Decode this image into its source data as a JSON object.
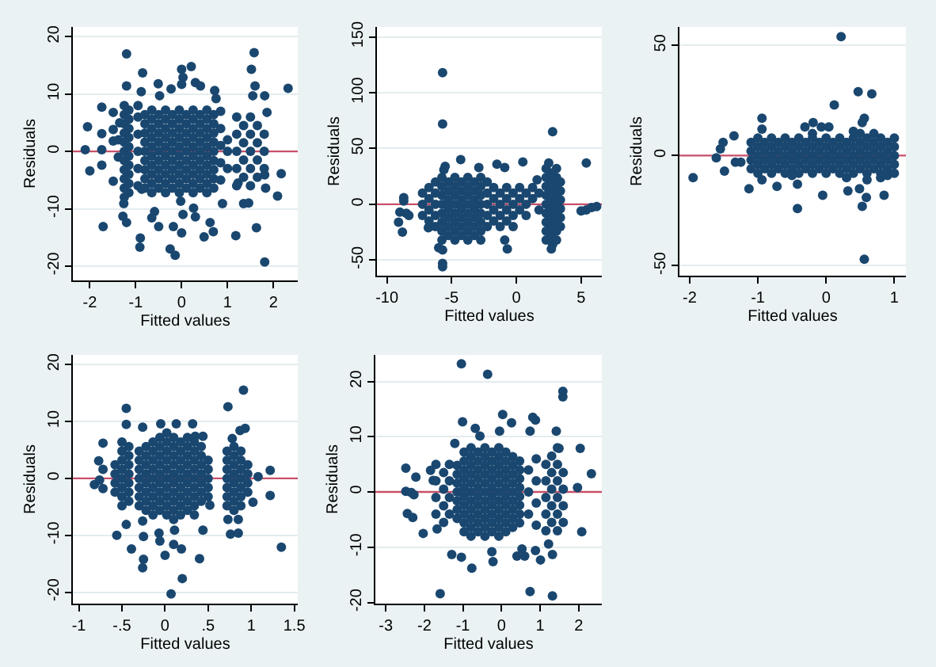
{
  "chart_data": [
    {
      "type": "scatter",
      "xlabel": "Fitted values",
      "ylabel": "Residuals",
      "xlim": [
        -2.37,
        2.53
      ],
      "ylim": [
        -22.5,
        21.7
      ],
      "xticks": [
        -2,
        -1,
        0,
        1,
        2
      ],
      "yticks": [
        -20,
        -10,
        0,
        10,
        20
      ],
      "grid": "y",
      "marker": "circle",
      "color": "#1a476f",
      "ref_lines": [
        {
          "axis": "y",
          "value": 0,
          "color": "#c8506a"
        }
      ],
      "x": [
        -2.05,
        -2.1,
        -2.0,
        -1.74,
        -1.74,
        -1.74,
        -1.74,
        -1.71,
        -1.49,
        -1.49,
        -1.49,
        -1.49,
        -1.2,
        -1.2,
        -1.26,
        -1.28,
        -1.2,
        -0.9,
        -0.91,
        -0.85,
        -0.88,
        -0.87,
        -0.59,
        -0.65,
        -0.51,
        -0.48,
        -0.5,
        -0.25,
        -0.14,
        -0.23,
        -0.18,
        0,
        0.03,
        0,
        -0.02,
        0.03,
        0,
        0.21,
        0.3,
        0.41,
        0.26,
        0.3,
        0.49,
        0.62,
        0.69,
        0.72,
        0.75,
        0.89,
        1.18,
        1.23,
        1.35,
        1.46,
        1.52,
        1.58,
        1.6,
        1.55,
        1.63,
        1.81,
        1.81,
        1.83,
        1.81,
        1.86,
        2.09,
        2.17,
        2.32,
        -1.38,
        -1.38,
        -1.35,
        -1.25,
        -1.25,
        -1.25,
        -1.25,
        -1.25,
        -1.25,
        -1.25,
        -1.25,
        -1.25,
        -1.25,
        -1.25,
        -1.15,
        -1.15,
        -1.15,
        -1.15,
        -1.15,
        -1.15,
        -1.15,
        -1.15,
        -1.15,
        -1.15,
        -0.95,
        -0.95,
        -0.95,
        -0.95,
        -0.95,
        -0.95,
        -0.8,
        -0.8,
        -0.8,
        -0.8,
        -0.8,
        -0.8,
        -0.8,
        -0.8,
        -0.8,
        -0.65,
        -0.65,
        -0.65,
        -0.65,
        -0.65,
        -0.65,
        -0.65,
        -0.65,
        -0.65,
        -0.65,
        -0.5,
        -0.5,
        -0.5,
        -0.5,
        -0.5,
        -0.5,
        -0.5,
        -0.5,
        -0.5,
        -0.35,
        -0.35,
        -0.35,
        -0.35,
        -0.35,
        -0.35,
        -0.35,
        -0.35,
        -0.35,
        -0.35,
        -0.2,
        -0.2,
        -0.2,
        -0.2,
        -0.2,
        -0.2,
        -0.2,
        -0.2,
        -0.2,
        -0.05,
        -0.05,
        -0.05,
        -0.05,
        -0.05,
        -0.05,
        -0.05,
        -0.05,
        -0.05,
        -0.05,
        0.1,
        0.1,
        0.1,
        0.1,
        0.1,
        0.1,
        0.1,
        0.1,
        0.1,
        0.25,
        0.25,
        0.25,
        0.25,
        0.25,
        0.25,
        0.25,
        0.25,
        0.25,
        0.25,
        0.4,
        0.4,
        0.4,
        0.4,
        0.4,
        0.4,
        0.4,
        0.4,
        0.4,
        0.55,
        0.55,
        0.55,
        0.55,
        0.55,
        0.55,
        0.55,
        0.55,
        0.55,
        0.55,
        0.7,
        0.7,
        0.7,
        0.7,
        0.7,
        0.7,
        0.7,
        0.7,
        0.7,
        0.85,
        0.85,
        0.85,
        0.85,
        0.85,
        1.0,
        1.0,
        1.0,
        1.2,
        1.2,
        1.2,
        1.2,
        1.2,
        1.35,
        1.35,
        1.35,
        1.35,
        1.5,
        1.5,
        1.5,
        1.5,
        1.5,
        1.65,
        1.65,
        1.65,
        1.65,
        1.8,
        1.8,
        1.8
      ],
      "values": [
        4.3,
        0.3,
        -3.4,
        7.7,
        3.1,
        0.3,
        -2.4,
        -13.1,
        6.8,
        3.8,
        1.8,
        -5.2,
        17,
        11.4,
        -9.1,
        -11.3,
        -12.4,
        -15.1,
        -16.7,
        13.7,
        10.4,
        -6.6,
        -10.5,
        -11.6,
        11.8,
        9.7,
        -13.1,
        -17,
        -18.1,
        10.9,
        -13.1,
        14.3,
        12.9,
        11.7,
        -8.7,
        -11,
        -14.2,
        14.8,
        12,
        11.4,
        -9.9,
        -11.4,
        -14.9,
        -12.4,
        -14,
        10.6,
        9.2,
        -9.1,
        -14.7,
        -5.5,
        -9.1,
        -9,
        14.3,
        17.2,
        11.4,
        9.7,
        -13.3,
        9.7,
        -4.1,
        -6.4,
        -19.3,
        6.8,
        -7.8,
        -3.9,
        11,
        2,
        -1,
        5,
        -8,
        -6.4,
        -4.8,
        -3.2,
        -1.6,
        0,
        1.6,
        3.2,
        4.8,
        6.4,
        8,
        -7.2,
        -5.6,
        -4,
        -2.4,
        -0.8,
        0.8,
        2.4,
        4,
        5.6,
        7.2,
        -6,
        -3,
        0,
        3,
        6,
        8,
        -6.4,
        -4.8,
        -3.2,
        -1.6,
        0,
        1.6,
        3.2,
        4.8,
        6.4,
        -7.2,
        -5.6,
        -4,
        -2.4,
        -0.8,
        0.8,
        2.4,
        4,
        5.6,
        7.2,
        -6.4,
        -4.8,
        -3.2,
        -1.6,
        0,
        1.6,
        3.2,
        4.8,
        6.4,
        -7.2,
        -5.6,
        -4,
        -2.4,
        -0.8,
        0.8,
        2.4,
        4,
        5.6,
        7.2,
        -6.4,
        -4.8,
        -3.2,
        -1.6,
        0,
        1.6,
        3.2,
        4.8,
        6.4,
        -7.2,
        -5.6,
        -4,
        -2.4,
        -0.8,
        0.8,
        2.4,
        4,
        5.6,
        7.2,
        -6.4,
        -4.8,
        -3.2,
        -1.6,
        0,
        1.6,
        3.2,
        4.8,
        6.4,
        -7.2,
        -5.6,
        -4,
        -2.4,
        -0.8,
        0.8,
        2.4,
        4,
        5.6,
        7.2,
        -6.4,
        -4.8,
        -3.2,
        -1.6,
        0,
        1.6,
        3.2,
        4.8,
        6.4,
        -7.2,
        -5.6,
        -4,
        -2.4,
        -0.8,
        0.8,
        2.4,
        4,
        5.6,
        7.2,
        -6.4,
        -4.8,
        -3.2,
        -1.6,
        0,
        1.6,
        3.2,
        4.8,
        6.4,
        -5,
        -2,
        1,
        4,
        7,
        -3,
        0,
        2,
        -6,
        -3,
        0,
        3,
        6,
        -4.5,
        -1.5,
        1.5,
        4.5,
        -6,
        -3,
        0,
        3,
        6,
        -4.5,
        -1.5,
        1.5,
        4.5,
        -3,
        0,
        3
      ]
    },
    {
      "type": "scatter",
      "xlabel": "Fitted values",
      "ylabel": "Residuals",
      "xlim": [
        -10.77,
        6.6
      ],
      "ylim": [
        -64,
        159
      ],
      "xticks": [
        -10,
        -5,
        0,
        5
      ],
      "yticks": [
        -50,
        0,
        50,
        100,
        150
      ],
      "grid": "y",
      "marker": "circle",
      "color": "#1a476f",
      "ref_lines": [
        {
          "axis": "y",
          "value": 0,
          "color": "#c8506a"
        }
      ],
      "x": [
        -9.1,
        -8.8,
        -8.7,
        -8.7,
        -9.0,
        -8.5,
        -8.3,
        -6.8,
        -6.0,
        -5.7,
        -5.7,
        -5.7,
        -5.7,
        -5.7,
        -4.3,
        -2.9,
        -1.5,
        -0.9,
        0.5,
        2.8,
        -0.9,
        -0.7,
        2.7,
        2.8,
        5.4,
        5.0,
        5.4,
        5.8,
        6.2,
        -5.5,
        -5.6,
        3.1,
        2.5,
        1.6,
        -7.25,
        -7.25,
        -7.25,
        -6.75,
        -6.75,
        -6.75,
        -6.75,
        -6.25,
        -6.25,
        -6.25,
        -6.25,
        -6.25,
        -5.75,
        -5.75,
        -5.75,
        -5.75,
        -5.75,
        -5.75,
        -5.75,
        -5.75,
        -5.25,
        -5.25,
        -5.25,
        -5.25,
        -5.25,
        -5.25,
        -5.25,
        -4.75,
        -4.75,
        -4.75,
        -4.75,
        -4.75,
        -4.75,
        -4.75,
        -4.75,
        -4.25,
        -4.25,
        -4.25,
        -4.25,
        -4.25,
        -4.25,
        -4.25,
        -3.75,
        -3.75,
        -3.75,
        -3.75,
        -3.75,
        -3.75,
        -3.75,
        -3.75,
        -3.25,
        -3.25,
        -3.25,
        -3.25,
        -3.25,
        -3.25,
        -3.25,
        -2.75,
        -2.75,
        -2.75,
        -2.75,
        -2.75,
        -2.75,
        -2.75,
        -2.75,
        -2.25,
        -2.25,
        -2.25,
        -2.25,
        -2.25,
        -1.75,
        -1.75,
        -1.75,
        -1.75,
        -1.25,
        -1.25,
        -1.25,
        -1.25,
        -0.75,
        -0.75,
        -0.75,
        -0.75,
        -0.25,
        -0.25,
        -0.25,
        -0.25,
        0.25,
        0.25,
        0.25,
        0.75,
        0.75,
        0.75,
        1.25,
        1.25,
        1.75,
        1.75,
        2.3,
        2.3,
        2.3,
        2.3,
        2.3,
        2.3,
        2.3,
        2.3,
        2.3,
        2.7,
        2.7,
        2.7,
        2.7,
        2.7,
        2.7,
        2.7,
        2.7,
        3.1,
        3.1,
        3.1,
        3.1,
        3.1,
        3.1,
        3.1,
        3.1,
        3.4,
        3.4,
        3.4,
        3.4,
        3.4,
        3.4
      ],
      "values": [
        -16,
        -25,
        6,
        3,
        -7,
        -8,
        -10,
        -21,
        -39,
        -41,
        -53,
        -56,
        118,
        72,
        40,
        33,
        36,
        33,
        38,
        65,
        -32,
        -40,
        -40,
        -36,
        37,
        -6,
        -5,
        -3,
        -2,
        34,
        31,
        32,
        37,
        22,
        -10,
        0,
        10,
        -15,
        -5,
        5,
        15,
        -20,
        -10,
        0,
        10,
        20,
        -32,
        -24,
        -16,
        -8,
        0,
        8,
        16,
        24,
        -28,
        -20,
        -12,
        -4,
        4,
        12,
        20,
        -32,
        -24,
        -16,
        -8,
        0,
        8,
        16,
        24,
        -28,
        -20,
        -12,
        -4,
        4,
        12,
        20,
        -32,
        -24,
        -16,
        -8,
        0,
        8,
        16,
        24,
        -28,
        -20,
        -12,
        -4,
        4,
        12,
        20,
        -32,
        -24,
        -16,
        -8,
        0,
        8,
        16,
        24,
        -20,
        -10,
        0,
        10,
        20,
        -15,
        -5,
        5,
        15,
        -20,
        -10,
        0,
        10,
        -15,
        -5,
        5,
        15,
        -20,
        -10,
        0,
        10,
        -5,
        5,
        15,
        -10,
        0,
        10,
        15,
        5,
        10,
        -5,
        -32,
        -24,
        -16,
        -8,
        0,
        8,
        16,
        24,
        32,
        -28,
        -20,
        -12,
        -4,
        4,
        12,
        20,
        28,
        -32,
        -24,
        -16,
        -8,
        0,
        8,
        16,
        24,
        -20,
        -12,
        -4,
        4,
        12,
        20
      ]
    },
    {
      "type": "scatter",
      "xlabel": "Fitted values",
      "ylabel": "Residuals",
      "xlim": [
        -2.15,
        1.17
      ],
      "ylim": [
        -54.5,
        58.4
      ],
      "xticks": [
        -2,
        -1,
        0,
        1
      ],
      "yticks": [
        -50,
        0,
        50
      ],
      "grid": "y",
      "marker": "circle",
      "color": "#1a476f",
      "ref_lines": [
        {
          "axis": "y",
          "value": 0,
          "color": "#c8506a"
        }
      ],
      "x": [
        -1.95,
        -1.61,
        -1.55,
        -1.51,
        -1.49,
        -1.35,
        -1.33,
        -1.25,
        -1.13,
        -0.94,
        -0.94,
        -0.94,
        -0.72,
        -0.42,
        -0.42,
        -0.31,
        -0.19,
        -0.05,
        0.12,
        0.22,
        0.32,
        0.47,
        0.49,
        0.53,
        0.56,
        0.59,
        0.67,
        0.56,
        0.53,
        0.85,
        0.9,
        0.04,
        -0.07,
        -1.1,
        -1.1,
        -1.1,
        -1.1,
        -1.0,
        -1.0,
        -1.0,
        -1.0,
        -1.0,
        -0.9,
        -0.9,
        -0.9,
        -0.9,
        -0.8,
        -0.8,
        -0.8,
        -0.8,
        -0.8,
        -0.7,
        -0.7,
        -0.7,
        -0.7,
        -0.6,
        -0.6,
        -0.6,
        -0.6,
        -0.6,
        -0.5,
        -0.5,
        -0.5,
        -0.5,
        -0.4,
        -0.4,
        -0.4,
        -0.4,
        -0.4,
        -0.3,
        -0.3,
        -0.3,
        -0.3,
        -0.2,
        -0.2,
        -0.2,
        -0.2,
        -0.2,
        -0.1,
        -0.1,
        -0.1,
        -0.1,
        0,
        0,
        0,
        0,
        0,
        0.1,
        0.1,
        0.1,
        0.1,
        0.2,
        0.2,
        0.2,
        0.2,
        0.2,
        0.3,
        0.3,
        0.3,
        0.3,
        0.4,
        0.4,
        0.4,
        0.4,
        0.4,
        0.5,
        0.5,
        0.5,
        0.5,
        0.6,
        0.6,
        0.6,
        0.6,
        0.6,
        0.7,
        0.7,
        0.7,
        0.7,
        0.8,
        0.8,
        0.8,
        0.8,
        0.8,
        0.9,
        0.9,
        0.9,
        0.9,
        1.0,
        1.0,
        1.0,
        1.0,
        1.0,
        0.4,
        0.6,
        0.7,
        0.8,
        0.5,
        0.3,
        -0.2,
        -0.5
      ],
      "values": [
        -10,
        -1,
        3,
        6,
        -7,
        9,
        -3,
        -3,
        -15,
        17,
        12,
        -11,
        -14,
        -24,
        -13,
        13,
        15,
        -18,
        23,
        54,
        -16,
        29,
        -15,
        -23,
        -47,
        -19,
        28,
        17,
        15,
        -18,
        -9,
        13,
        13,
        -6,
        -2,
        2,
        6,
        -8,
        -4,
        0,
        4,
        8,
        -6,
        -2,
        2,
        6,
        -8,
        -4,
        0,
        4,
        8,
        -6,
        -2,
        2,
        6,
        -8,
        -4,
        0,
        4,
        8,
        -6,
        -2,
        2,
        6,
        -8,
        -4,
        0,
        4,
        8,
        -6,
        -2,
        2,
        6,
        -8,
        -4,
        0,
        4,
        8,
        -6,
        -2,
        2,
        6,
        -8,
        -4,
        0,
        4,
        8,
        -6,
        -2,
        2,
        6,
        -8,
        -4,
        0,
        4,
        8,
        -6,
        -2,
        2,
        6,
        -8,
        -4,
        0,
        4,
        8,
        -6,
        -2,
        2,
        6,
        -8,
        -4,
        0,
        4,
        8,
        -6,
        -2,
        2,
        6,
        -8,
        -4,
        0,
        4,
        8,
        -6,
        -2,
        2,
        6,
        -8,
        -4,
        0,
        4,
        8,
        11,
        -11,
        10,
        -10,
        10,
        -10,
        10,
        -9
      ]
    },
    {
      "type": "scatter",
      "xlabel": "Fitted values",
      "ylabel": "Residuals",
      "xlim": [
        -1.07,
        1.54
      ],
      "ylim": [
        -22,
        21.7
      ],
      "xticks": [
        -1,
        {
          "value": -0.5,
          "label": "-.5"
        },
        0,
        {
          "value": 0.5,
          "label": ".5"
        },
        1,
        1.5
      ],
      "yticks": [
        -20,
        -10,
        0,
        10,
        20
      ],
      "grid": "y",
      "marker": "circle",
      "color": "#1a476f",
      "ref_lines": [
        {
          "axis": "y",
          "value": 0,
          "color": "#c8506a"
        }
      ],
      "x": [
        -0.82,
        -0.77,
        -0.76,
        -0.72,
        -0.72,
        -0.72,
        -0.56,
        -0.45,
        -0.45,
        -0.45,
        -0.39,
        -0.26,
        -0.25,
        -0.26,
        -0.25,
        -0.26,
        -0.07,
        -0.06,
        0,
        0.07,
        0.1,
        0.11,
        0.19,
        0.2,
        0.13,
        -0.05,
        0.32,
        0.35,
        0.44,
        0.4,
        0.44,
        0.52,
        0.73,
        0.78,
        0.73,
        0.76,
        0.85,
        0.85,
        0.93,
        0.91,
        0.87,
        1.02,
        1.08,
        1.22,
        1.22,
        1.35,
        -0.58,
        -0.58,
        -0.58,
        -0.58,
        -0.5,
        -0.5,
        -0.5,
        -0.5,
        -0.5,
        -0.5,
        -0.5,
        -0.5,
        -0.42,
        -0.42,
        -0.42,
        -0.42,
        -0.42,
        -0.42,
        -0.42,
        -0.3,
        -0.3,
        -0.3,
        -0.3,
        -0.3,
        -0.3,
        -0.3,
        -0.22,
        -0.22,
        -0.22,
        -0.22,
        -0.22,
        -0.22,
        -0.22,
        -0.22,
        -0.14,
        -0.14,
        -0.14,
        -0.14,
        -0.14,
        -0.14,
        -0.14,
        -0.14,
        -0.14,
        -0.06,
        -0.06,
        -0.06,
        -0.06,
        -0.06,
        -0.06,
        -0.06,
        -0.06,
        -0.06,
        0.02,
        0.02,
        0.02,
        0.02,
        0.02,
        0.02,
        0.02,
        0.02,
        0.02,
        0.02,
        0.1,
        0.1,
        0.1,
        0.1,
        0.1,
        0.1,
        0.1,
        0.1,
        0.1,
        0.1,
        0.18,
        0.18,
        0.18,
        0.18,
        0.18,
        0.18,
        0.18,
        0.18,
        0.18,
        0.26,
        0.26,
        0.26,
        0.26,
        0.26,
        0.26,
        0.26,
        0.26,
        0.26,
        0.34,
        0.34,
        0.34,
        0.34,
        0.34,
        0.34,
        0.34,
        0.34,
        0.34,
        0.42,
        0.42,
        0.42,
        0.42,
        0.42,
        0.42,
        0.42,
        0.5,
        0.5,
        0.5,
        0.5,
        0.5,
        0.72,
        0.72,
        0.72,
        0.72,
        0.72,
        0.72,
        0.72,
        0.8,
        0.8,
        0.8,
        0.8,
        0.8,
        0.8,
        0.8,
        0.8,
        0.88,
        0.88,
        0.88,
        0.88,
        0.88,
        0.88,
        0.88,
        0.96,
        0.96,
        0.96,
        0.96
      ],
      "values": [
        -1.1,
        3.1,
        -0.3,
        6.2,
        1.6,
        -1.8,
        -10,
        12.3,
        9.5,
        -8.1,
        -12.4,
        -7.5,
        -10.2,
        9,
        -14.2,
        -15.7,
        -9.6,
        -11,
        -13.5,
        -20.3,
        -11.6,
        -9.1,
        -12.4,
        -17.6,
        9.6,
        9.6,
        9.6,
        7.4,
        7.4,
        -14.1,
        -9.1,
        -4.7,
        12.6,
        7,
        -7.2,
        -9.8,
        -9.6,
        -7.2,
        8.8,
        15.5,
        8.4,
        -4.2,
        0.3,
        1.4,
        -3,
        -12.1,
        -2.4,
        -0.8,
        0.8,
        2.4,
        -4.8,
        -3.2,
        -1.6,
        0,
        1.6,
        3.2,
        4.8,
        6.4,
        -4,
        -2.4,
        -0.8,
        0.8,
        2.4,
        4,
        5.6,
        -4.8,
        -3.2,
        -1.6,
        0,
        1.6,
        3.2,
        4.8,
        -5.6,
        -4,
        -2.4,
        -0.8,
        0.8,
        2.4,
        4,
        5.6,
        -6.4,
        -4.8,
        -3.2,
        -1.6,
        0,
        1.6,
        3.2,
        4.8,
        6.4,
        -5.6,
        -4,
        -2.4,
        -0.8,
        0.8,
        2.4,
        4,
        5.6,
        7.2,
        -6.4,
        -4.8,
        -3.2,
        -1.6,
        0,
        1.6,
        3.2,
        4.8,
        6.4,
        8,
        -7.2,
        -5.6,
        -4,
        -2.4,
        -0.8,
        0.8,
        2.4,
        4,
        5.6,
        7.2,
        -6.4,
        -4.8,
        -3.2,
        -1.6,
        0,
        1.6,
        3.2,
        4.8,
        6.4,
        -5.6,
        -4,
        -2.4,
        -0.8,
        0.8,
        2.4,
        4,
        5.6,
        7.2,
        -6.4,
        -4.8,
        -3.2,
        -1.6,
        0,
        1.6,
        3.2,
        4.8,
        6.4,
        -4,
        -2.4,
        -0.8,
        0.8,
        2.4,
        4,
        5.6,
        -3.2,
        -1.6,
        0,
        1.6,
        3.2,
        -4.8,
        -3.2,
        -1.6,
        0,
        1.6,
        3.2,
        4.8,
        -5.6,
        -4,
        -2.4,
        -0.8,
        0.8,
        2.4,
        4,
        5.6,
        -4.8,
        -3.2,
        -1.6,
        0,
        1.6,
        3.2,
        4.8,
        -2.4,
        -0.8,
        0.8,
        2.4
      ]
    },
    {
      "type": "scatter",
      "xlabel": "Fitted values",
      "ylabel": "Residuals",
      "xlim": [
        -3.27,
        2.6
      ],
      "ylim": [
        -20.2,
        24.8
      ],
      "xticks": [
        -3,
        -2,
        -1,
        0,
        1,
        2
      ],
      "yticks": [
        -20,
        -10,
        0,
        10,
        20
      ],
      "grid": "y",
      "marker": "circle",
      "color": "#1a476f",
      "ref_lines": [
        {
          "axis": "y",
          "value": 0,
          "color": "#c8506a"
        }
      ],
      "x": [
        -2.48,
        -2.48,
        -2.44,
        -2.34,
        -2.3,
        -2.22,
        -2.27,
        -2.03,
        -1.84,
        -1.67,
        -1.77,
        -1.59,
        -1.29,
        -1.21,
        -1.04,
        -1.01,
        -1.04,
        -0.77,
        -0.68,
        -0.56,
        -0.36,
        -0.22,
        -0.25,
        0.03,
        -0.05,
        0.26,
        0.4,
        0.53,
        0.6,
        0.74,
        0.81,
        0.88,
        0.74,
        0.88,
        1.22,
        1.32,
        1.32,
        1.42,
        1.59,
        1.59,
        1.49,
        2.04,
        1.97,
        2.08,
        2.33,
        1.01,
        -1.7,
        -1.7,
        -1.7,
        -1.7,
        -1.5,
        -1.5,
        -1.5,
        -1.5,
        -1.35,
        -1.35,
        -1.35,
        -1.35,
        -1.15,
        -1.15,
        -1.15,
        -1.15,
        -1.15,
        -1.15,
        -1.15,
        -0.97,
        -0.97,
        -0.97,
        -0.97,
        -0.97,
        -0.97,
        -0.97,
        -0.97,
        -0.97,
        -0.97,
        -0.79,
        -0.79,
        -0.79,
        -0.79,
        -0.79,
        -0.79,
        -0.79,
        -0.79,
        -0.79,
        -0.79,
        -0.79,
        -0.61,
        -0.61,
        -0.61,
        -0.61,
        -0.61,
        -0.61,
        -0.61,
        -0.61,
        -0.61,
        -0.61,
        -0.43,
        -0.43,
        -0.43,
        -0.43,
        -0.43,
        -0.43,
        -0.43,
        -0.43,
        -0.43,
        -0.43,
        -0.43,
        -0.25,
        -0.25,
        -0.25,
        -0.25,
        -0.25,
        -0.25,
        -0.25,
        -0.25,
        -0.25,
        -0.25,
        -0.07,
        -0.07,
        -0.07,
        -0.07,
        -0.07,
        -0.07,
        -0.07,
        -0.07,
        -0.07,
        -0.07,
        -0.07,
        0.11,
        0.11,
        0.11,
        0.11,
        0.11,
        0.11,
        0.11,
        0.11,
        0.11,
        0.11,
        0.29,
        0.29,
        0.29,
        0.29,
        0.29,
        0.29,
        0.29,
        0.29,
        0.29,
        0.47,
        0.47,
        0.47,
        0.47,
        0.47,
        0.47,
        0.47,
        0.47,
        0.7,
        0.7,
        0.7,
        0.9,
        0.9,
        0.9,
        0.9,
        1.15,
        1.15,
        1.15,
        1.15,
        1.15,
        1.3,
        1.3,
        1.3,
        1.3,
        1.3,
        1.45,
        1.45,
        1.45,
        1.45,
        1.45,
        1.45,
        1.6,
        1.6,
        1.6,
        1.6
      ],
      "values": [
        4.3,
        0.1,
        -3.9,
        -0.1,
        -4.6,
        2.7,
        -0.5,
        -7.5,
        3.9,
        -6.7,
        2.1,
        -18.4,
        -11.3,
        8.8,
        23.2,
        12.7,
        -11.8,
        -13.8,
        11.5,
        10.1,
        21.3,
        -12.6,
        -10.8,
        14,
        11,
        12.5,
        -11.6,
        -10.3,
        -11.6,
        11,
        13.5,
        13,
        -18,
        -10.6,
        -9.4,
        -11.3,
        -18.8,
        11,
        18.2,
        17.2,
        7.9,
        7.9,
        0.8,
        -7.2,
        3.3,
        -12.3,
        -4,
        -1,
        2,
        5,
        -5.5,
        -2.5,
        0.5,
        3.5,
        -4,
        -1,
        2,
        5,
        -4.8,
        -3.2,
        -1.6,
        0,
        1.6,
        3.2,
        4.8,
        -7.2,
        -5.6,
        -4,
        -2.4,
        -0.8,
        0.8,
        2.4,
        4,
        5.6,
        7.2,
        -8,
        -6.4,
        -4.8,
        -3.2,
        -1.6,
        0,
        1.6,
        3.2,
        4.8,
        6.4,
        8,
        -7.2,
        -5.6,
        -4,
        -2.4,
        -0.8,
        0.8,
        2.4,
        4,
        5.6,
        7.2,
        -8,
        -6.4,
        -4.8,
        -3.2,
        -1.6,
        0,
        1.6,
        3.2,
        4.8,
        6.4,
        8,
        -7.2,
        -5.6,
        -4,
        -2.4,
        -0.8,
        0.8,
        2.4,
        4,
        5.6,
        7.2,
        -8,
        -6.4,
        -4.8,
        -3.2,
        -1.6,
        0,
        1.6,
        3.2,
        4.8,
        6.4,
        8,
        -7.2,
        -5.6,
        -4,
        -2.4,
        -0.8,
        0.8,
        2.4,
        4,
        5.6,
        7.2,
        -6.4,
        -4.8,
        -3.2,
        -1.6,
        0,
        1.6,
        3.2,
        4.8,
        6.4,
        -5.6,
        -4,
        -2.4,
        -0.8,
        0.8,
        2.4,
        4,
        5.6,
        -4,
        0,
        4,
        -6,
        -2,
        2,
        6,
        -7,
        -4,
        -1,
        2,
        5,
        -5.5,
        -2.5,
        0.5,
        3.5,
        6.5,
        -7,
        -4,
        -1,
        2,
        5,
        8,
        -5.5,
        -2.5,
        0.5,
        3.5
      ]
    }
  ]
}
